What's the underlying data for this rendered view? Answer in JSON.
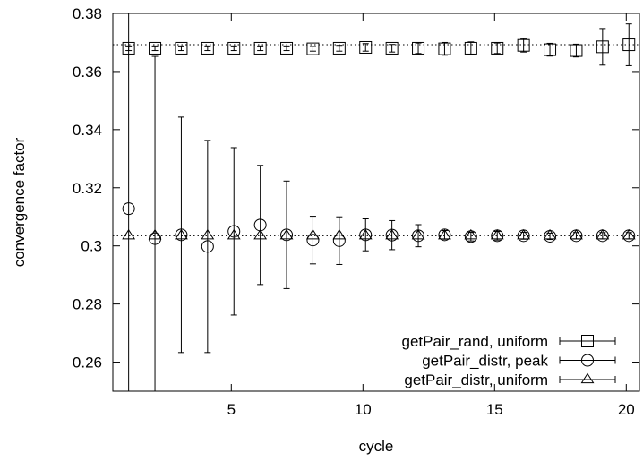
{
  "chart_data": {
    "type": "scatter",
    "xlabel": "cycle",
    "ylabel": "convergence factor",
    "xlim": [
      0.5,
      20.5
    ],
    "ylim": [
      0.25,
      0.38
    ],
    "x_ticks": [
      5,
      10,
      15,
      20
    ],
    "x_tick_labels": [
      "5",
      "10",
      "15",
      "20"
    ],
    "y_ticks": [
      0.26,
      0.28,
      0.3,
      0.32,
      0.34,
      0.36,
      0.38
    ],
    "y_tick_labels": [
      "0.26",
      "0.28",
      "0.3",
      "0.32",
      "0.34",
      "0.36",
      "0.38"
    ],
    "grid": false,
    "legend_position": "bottom-right",
    "reference_lines": [
      0.3692,
      0.3035
    ],
    "series": [
      {
        "name": "getPair_rand, uniform",
        "marker": "square",
        "x": [
          1.1,
          2.1,
          3.1,
          4.1,
          5.1,
          6.1,
          7.1,
          8.1,
          9.1,
          10.1,
          11.1,
          12.1,
          13.1,
          14.1,
          15.1,
          16.1,
          17.1,
          18.1,
          19.1,
          20.1
        ],
        "y": [
          0.368,
          0.368,
          0.368,
          0.368,
          0.368,
          0.368,
          0.368,
          0.3678,
          0.368,
          0.3683,
          0.368,
          0.368,
          0.3678,
          0.368,
          0.368,
          0.369,
          0.3675,
          0.3672,
          0.3685,
          0.3692
        ],
        "err": [
          0.0008,
          0.0008,
          0.0008,
          0.0008,
          0.0008,
          0.0008,
          0.0008,
          0.0008,
          0.001,
          0.0013,
          0.0013,
          0.0018,
          0.0022,
          0.0022,
          0.0018,
          0.0023,
          0.0022,
          0.0022,
          0.0063,
          0.0072
        ]
      },
      {
        "name": "getPair_distr, peak",
        "marker": "circle",
        "x": [
          1.1,
          2.1,
          3.1,
          4.1,
          5.1,
          6.1,
          7.1,
          8.1,
          9.1,
          10.1,
          11.1,
          12.1,
          13.1,
          14.1,
          15.1,
          16.1,
          17.1,
          18.1,
          19.1,
          20.1
        ],
        "y": [
          0.3128,
          0.3025,
          0.3038,
          0.2998,
          0.305,
          0.3072,
          0.3038,
          0.302,
          0.3018,
          0.3038,
          0.3037,
          0.3035,
          0.3038,
          0.3032,
          0.3035,
          0.3035,
          0.3033,
          0.3035,
          0.3035,
          0.3035
        ],
        "err": [
          0.1,
          0.0627,
          0.0405,
          0.0365,
          0.0288,
          0.0205,
          0.0185,
          0.0082,
          0.0082,
          0.0055,
          0.005,
          0.0038,
          0.0015,
          0.0015,
          0.0015,
          0.0012,
          0.0011,
          0.0011,
          0.0011,
          0.0011
        ]
      },
      {
        "name": "getPair_distr, uniform",
        "marker": "triangle",
        "x": [
          1.1,
          2.1,
          3.1,
          4.1,
          5.1,
          6.1,
          7.1,
          8.1,
          9.1,
          10.1,
          11.1,
          12.1,
          13.1,
          14.1,
          15.1,
          16.1,
          17.1,
          18.1,
          19.1,
          20.1
        ],
        "y": [
          0.3035,
          0.3035,
          0.3035,
          0.3035,
          0.3035,
          0.3035,
          0.3035,
          0.3035,
          0.3035,
          0.3035,
          0.3035,
          0.3035,
          0.3035,
          0.3035,
          0.3035,
          0.3035,
          0.3035,
          0.3035,
          0.3035,
          0.3035
        ],
        "err": [
          0,
          0,
          0,
          0,
          0,
          0,
          0,
          0,
          0,
          0,
          0,
          0,
          0,
          0,
          0,
          0,
          0,
          0,
          0,
          0
        ]
      }
    ]
  }
}
